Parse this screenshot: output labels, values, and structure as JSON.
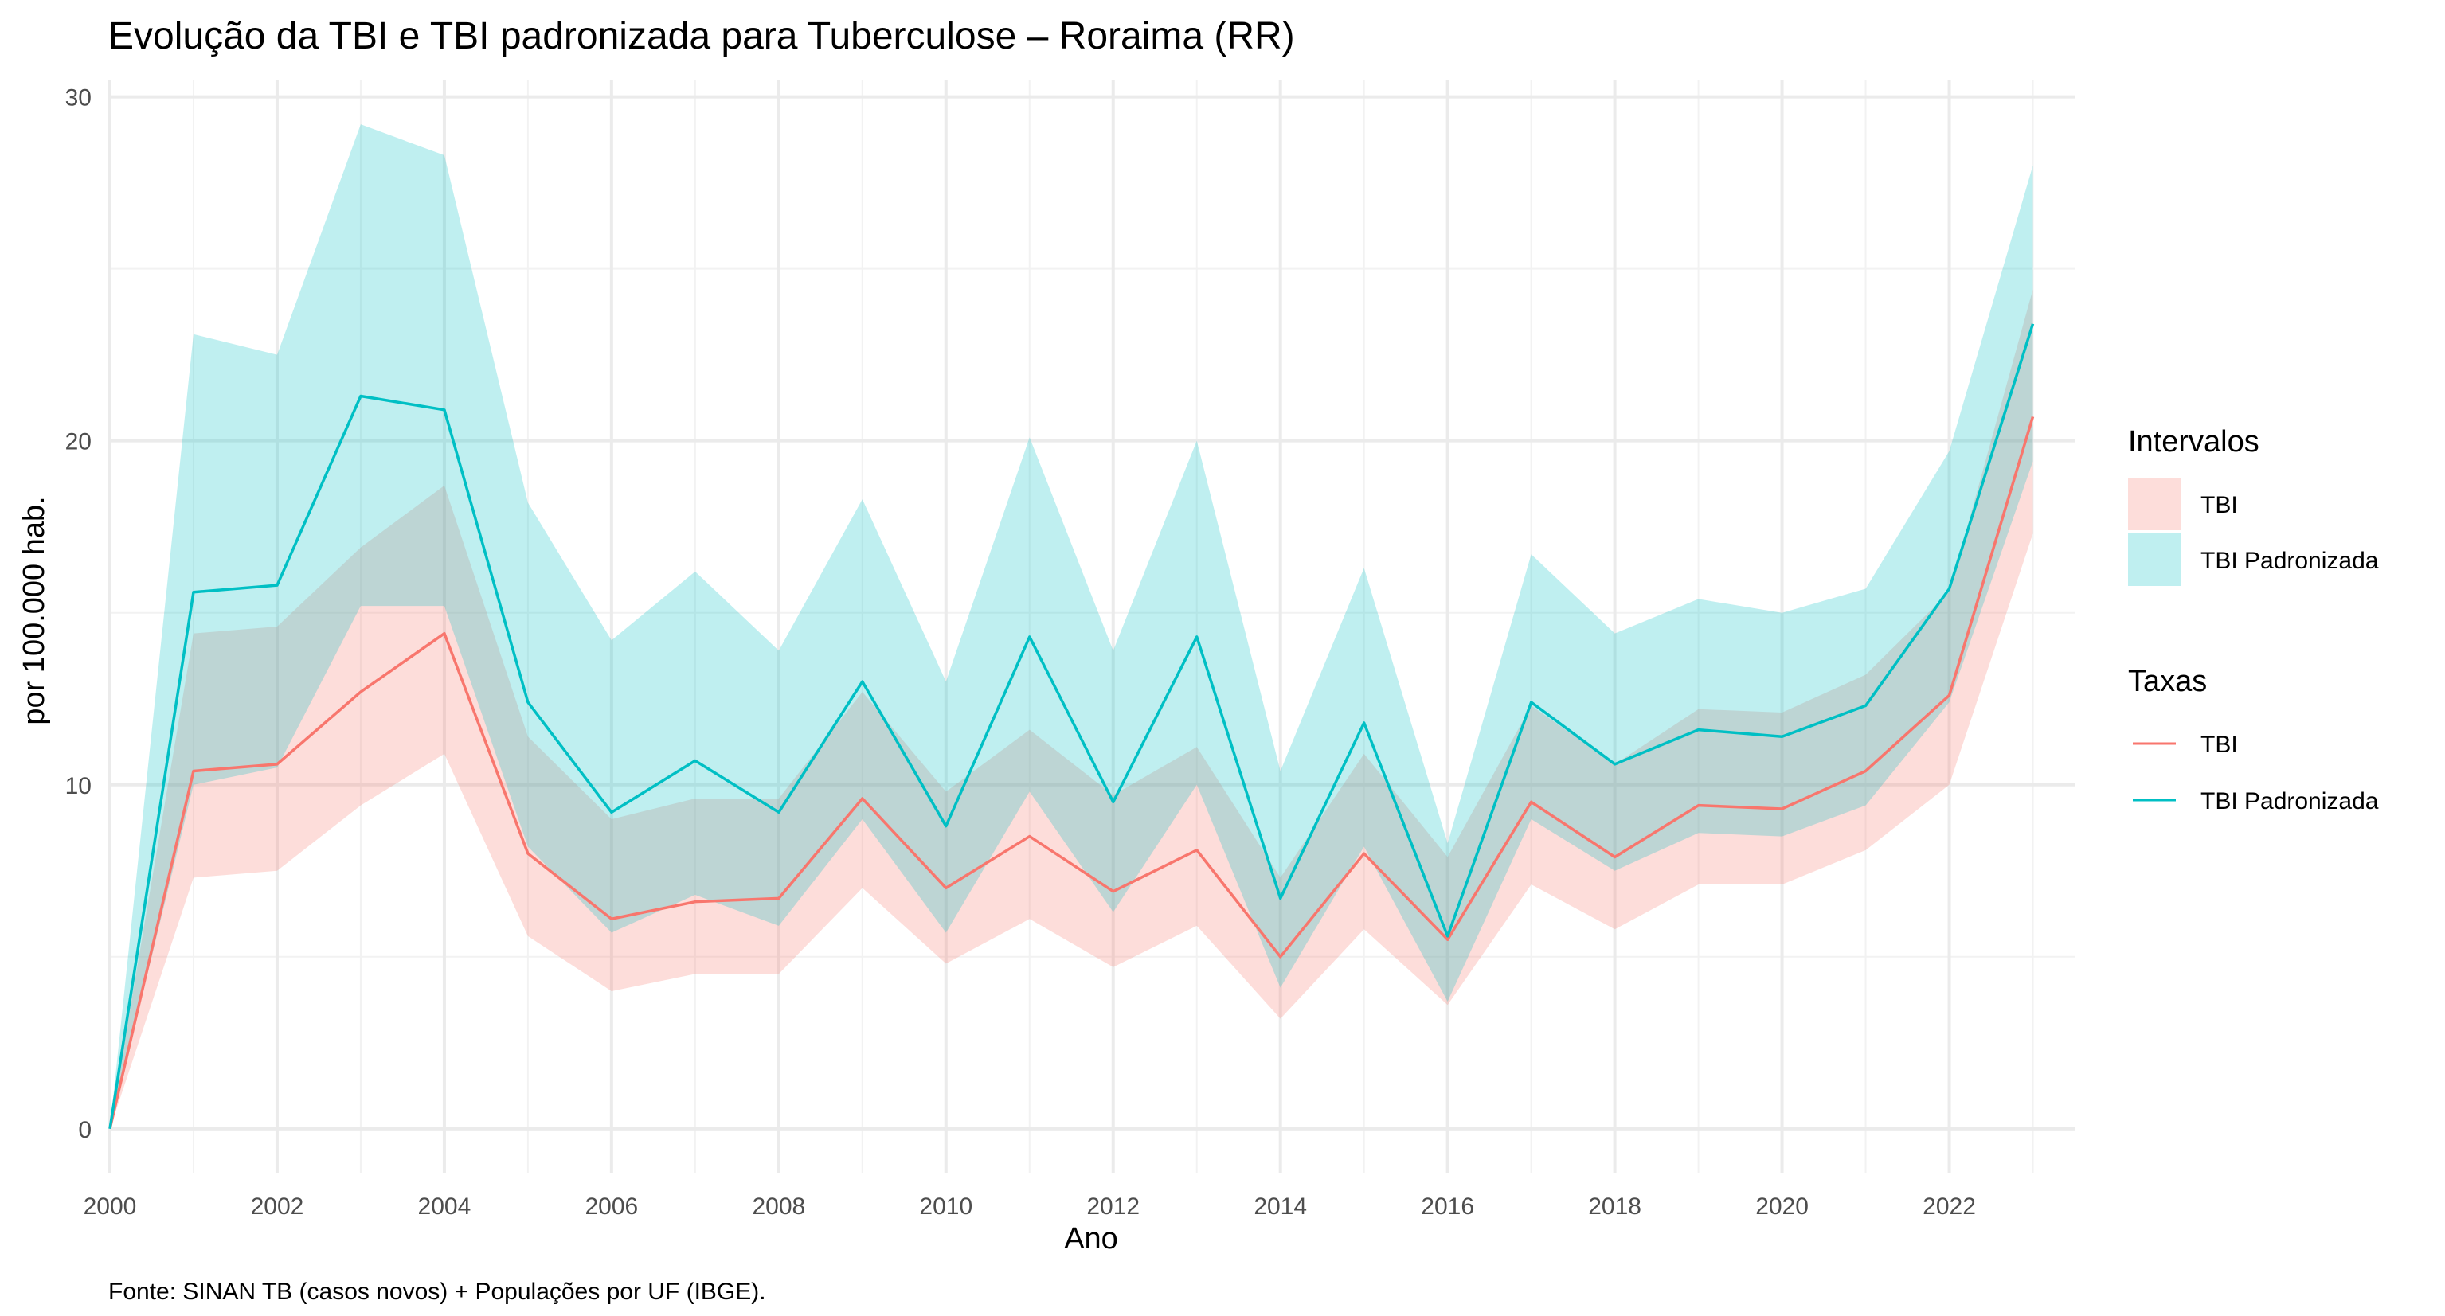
{
  "chart_data": {
    "type": "line",
    "title": "Evolução da TBI e TBI padronizada para Tuberculose – Roraima (RR)",
    "xlabel": "Ano",
    "ylabel": "por 100.000 hab.",
    "caption": "Fonte: SINAN TB (casos novos) + Populações por UF (IBGE).",
    "x": [
      2000,
      2001,
      2002,
      2003,
      2004,
      2005,
      2006,
      2007,
      2008,
      2009,
      2010,
      2011,
      2012,
      2013,
      2014,
      2015,
      2016,
      2017,
      2018,
      2019,
      2020,
      2021,
      2022,
      2023
    ],
    "xlim": [
      2000,
      2023.5
    ],
    "ylim": [
      -1.3,
      30.5
    ],
    "x_ticks": [
      2000,
      2002,
      2004,
      2006,
      2008,
      2010,
      2012,
      2014,
      2016,
      2018,
      2020,
      2022
    ],
    "x_tick_labels": [
      "2000",
      "2002",
      "2004",
      "2006",
      "2008",
      "2010",
      "2012",
      "2014",
      "2016",
      "2018",
      "2020",
      "2022"
    ],
    "y_ticks": [
      0,
      10,
      20,
      30
    ],
    "y_tick_labels": [
      "0",
      "10",
      "20",
      "30"
    ],
    "grid": true,
    "legend_position": "right",
    "series": [
      {
        "name": "TBI",
        "color": "#F8766D",
        "values": [
          0,
          10.4,
          10.6,
          12.7,
          14.4,
          8.0,
          6.1,
          6.6,
          6.7,
          9.6,
          7.0,
          8.5,
          6.9,
          8.1,
          5.0,
          8.0,
          5.5,
          9.5,
          7.9,
          9.4,
          9.3,
          10.4,
          12.6,
          20.7
        ],
        "ci_lower": [
          0,
          7.3,
          7.5,
          9.4,
          10.9,
          5.6,
          4.0,
          4.5,
          4.5,
          7.0,
          4.8,
          6.1,
          4.7,
          5.9,
          3.2,
          5.8,
          3.6,
          7.1,
          5.8,
          7.1,
          7.1,
          8.1,
          10.0,
          17.3
        ],
        "ci_upper": [
          0,
          14.4,
          14.6,
          16.9,
          18.7,
          11.4,
          9.0,
          9.6,
          9.6,
          12.7,
          9.8,
          11.6,
          9.7,
          11.1,
          7.3,
          10.9,
          7.9,
          12.3,
          10.6,
          12.2,
          12.1,
          13.2,
          15.6,
          24.4
        ]
      },
      {
        "name": "TBI Padronizada",
        "color": "#00BFC4",
        "values": [
          0,
          15.6,
          15.8,
          21.3,
          20.9,
          12.4,
          9.2,
          10.7,
          9.2,
          13.0,
          8.8,
          14.3,
          9.5,
          14.3,
          6.7,
          11.8,
          5.6,
          12.4,
          10.6,
          11.6,
          11.4,
          12.3,
          15.7,
          23.4
        ],
        "ci_lower": [
          0,
          10.0,
          10.5,
          15.2,
          15.2,
          8.2,
          5.7,
          6.8,
          5.9,
          9.0,
          5.7,
          9.8,
          6.3,
          10.0,
          4.1,
          8.2,
          3.7,
          9.0,
          7.5,
          8.6,
          8.5,
          9.4,
          12.4,
          19.4
        ],
        "ci_upper": [
          0,
          23.1,
          22.5,
          29.2,
          28.3,
          18.2,
          14.2,
          16.2,
          13.9,
          18.3,
          13.0,
          20.1,
          13.9,
          20.0,
          10.4,
          16.3,
          8.3,
          16.7,
          14.4,
          15.4,
          15.0,
          15.7,
          19.7,
          28.0
        ]
      }
    ],
    "legends": [
      {
        "title": "Intervalos",
        "items": [
          "TBI",
          "TBI Padronizada"
        ]
      },
      {
        "title": "Taxas",
        "items": [
          "TBI",
          "TBI Padronizada"
        ]
      }
    ],
    "ribbon_opacity": 0.25
  }
}
